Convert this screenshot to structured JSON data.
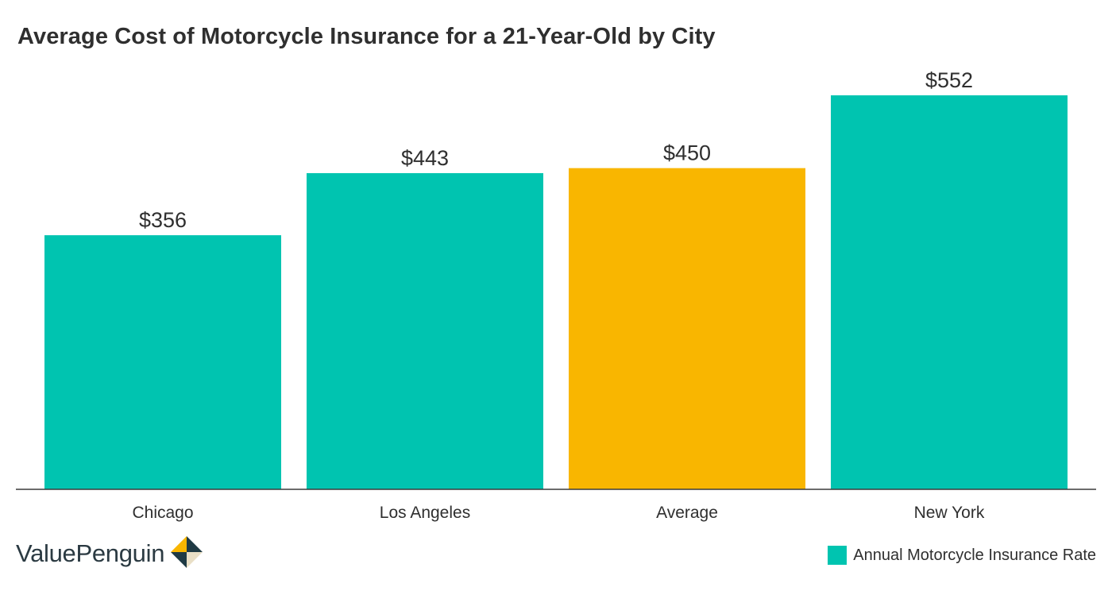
{
  "chart_data": {
    "type": "bar",
    "title": "Average Cost of Motorcycle Insurance for a 21-Year-Old by City",
    "categories": [
      "Chicago",
      "Los Angeles",
      "Average",
      "New York"
    ],
    "values": [
      356,
      443,
      450,
      552
    ],
    "value_labels": [
      "$356",
      "$443",
      "$450",
      "$552"
    ],
    "bar_colors": [
      "#00c4b0",
      "#00c4b0",
      "#f9b600",
      "#00c4b0"
    ],
    "series": [
      {
        "name": "Annual Motorcycle Insurance Rate",
        "values": [
          356,
          443,
          450,
          552
        ],
        "color": "#00c4b0"
      }
    ],
    "highlight_color": "#f9b600",
    "ylim": [
      0,
      552
    ],
    "grid": false,
    "legend_position": "bottom-right"
  },
  "branding": {
    "name": "ValuePenguin"
  },
  "legend": {
    "label": "Annual Motorcycle Insurance Rate",
    "color": "#00c4b0"
  }
}
